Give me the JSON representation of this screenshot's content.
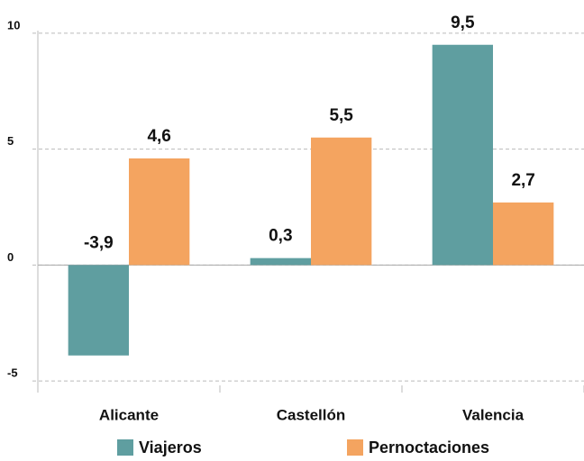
{
  "chart_data": {
    "type": "bar",
    "categories": [
      "Alicante",
      "Castellón",
      "Valencia"
    ],
    "series": [
      {
        "name": "Viajeros",
        "color": "#5f9ea0",
        "values": [
          -3.9,
          0.3,
          9.5
        ],
        "value_labels": [
          "-3,9",
          "0,3",
          "9,5"
        ]
      },
      {
        "name": "Pernoctaciones",
        "color": "#f4a460",
        "values": [
          4.6,
          5.5,
          2.7
        ],
        "value_labels": [
          "4,6",
          "5,5",
          "2,7"
        ]
      }
    ],
    "ylim": [
      -5.5,
      10.5
    ],
    "yticks": [
      -5,
      0,
      5,
      10
    ],
    "grid": true,
    "legend": "bottom"
  }
}
